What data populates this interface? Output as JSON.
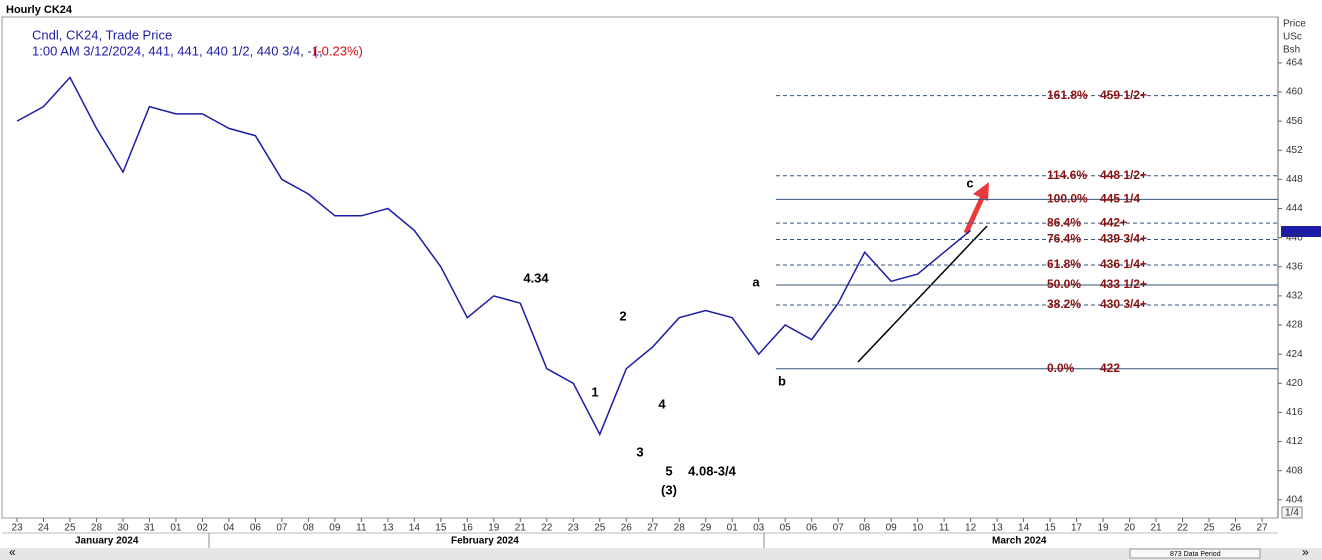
{
  "chart_data": {
    "type": "line",
    "title": "Hourly CK24",
    "subtitle": "Cndl, CK24, Trade Price",
    "info": "1:00 AM 3/12/2024, 441, 441, 440 1/2, 440 3/4, -1,",
    "change": "(-0.23%)",
    "axis_title": [
      "Price",
      "USc",
      "Bsh"
    ],
    "categories": [
      "23",
      "24",
      "25",
      "28",
      "30",
      "31",
      "01",
      "02",
      "04",
      "06",
      "07",
      "08",
      "09",
      "11",
      "13",
      "14",
      "15",
      "16",
      "19",
      "21",
      "22",
      "23",
      "25",
      "26",
      "27",
      "28",
      "29",
      "01",
      "03",
      "05",
      "06",
      "07",
      "08",
      "09",
      "10",
      "11",
      "12",
      "13",
      "14",
      "15",
      "17",
      "19",
      "20",
      "21",
      "22",
      "25",
      "26",
      "27"
    ],
    "months": [
      "January 2024",
      "February 2024",
      "March 2024"
    ],
    "series": [
      {
        "name": "CK24",
        "color": "#1c1ca8",
        "values": [
          456,
          458,
          462,
          455,
          449,
          458,
          457,
          457,
          455,
          454,
          448,
          446,
          443,
          443,
          444,
          441,
          436,
          429,
          432,
          431,
          422,
          420,
          413,
          422,
          425,
          429,
          430,
          429,
          424,
          428,
          426,
          431,
          438,
          434,
          435,
          438,
          441,
          null,
          null,
          null,
          null,
          null,
          null,
          null,
          null,
          null,
          null,
          null
        ]
      }
    ],
    "ylim": [
      401.5,
      470.3
    ],
    "yticks": [
      404,
      408,
      412,
      416,
      420,
      424,
      428,
      432,
      436,
      440,
      444,
      448,
      452,
      456,
      460,
      464
    ],
    "grid": false,
    "fib_levels": [
      {
        "pct": "161.8%",
        "label": "459 1/2+",
        "value": 459.5,
        "dashed": true
      },
      {
        "pct": "114.6%",
        "label": "448 1/2+",
        "value": 448.5,
        "dashed": true
      },
      {
        "pct": "100.0%",
        "label": "445 1/4",
        "value": 445.25,
        "dashed": false
      },
      {
        "pct": "86.4%",
        "label": "442+",
        "value": 442,
        "dashed": true
      },
      {
        "pct": "76.4%",
        "label": "439 3/4+",
        "value": 439.75,
        "dashed": true
      },
      {
        "pct": "61.8%",
        "label": "436 1/4+",
        "value": 436.25,
        "dashed": true
      },
      {
        "pct": "50.0%",
        "label": "433 1/2+",
        "value": 433.5,
        "dashed": false
      },
      {
        "pct": "38.2%",
        "label": "430 3/4+",
        "value": 430.75,
        "dashed": true
      },
      {
        "pct": "0.0%",
        "label": "422",
        "value": 422,
        "dashed": false
      }
    ],
    "annotations": [
      "a",
      "b",
      "c",
      "1",
      "2",
      "3",
      "4",
      "5",
      "(3)",
      "4.34",
      "4.08-3/4"
    ],
    "footer": "873 Data Period",
    "page": "1/4",
    "nav": [
      "«",
      "»"
    ]
  }
}
